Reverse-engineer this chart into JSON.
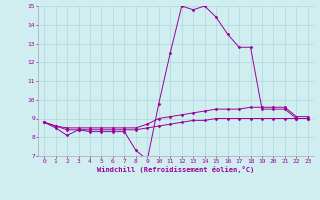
{
  "background_color": "#d0eef0",
  "grid_color": "#b0d8dc",
  "line_color": "#990099",
  "marker": "D",
  "markersize": 1.5,
  "xlabel": "Windchill (Refroidissement éolien,°C)",
  "xlim": [
    -0.5,
    23.5
  ],
  "ylim": [
    7,
    15
  ],
  "xticks": [
    0,
    1,
    2,
    3,
    4,
    5,
    6,
    7,
    8,
    9,
    10,
    11,
    12,
    13,
    14,
    15,
    16,
    17,
    18,
    19,
    20,
    21,
    22,
    23
  ],
  "yticks": [
    7,
    8,
    9,
    10,
    11,
    12,
    13,
    14,
    15
  ],
  "series": [
    [
      8.8,
      8.5,
      8.1,
      8.4,
      8.3,
      8.3,
      8.3,
      8.3,
      7.3,
      6.8,
      9.8,
      12.5,
      15.0,
      14.8,
      15.0,
      14.4,
      13.5,
      12.8,
      12.8,
      9.5,
      9.5,
      9.5,
      9.0,
      9.0
    ],
    [
      8.8,
      8.6,
      8.5,
      8.5,
      8.5,
      8.5,
      8.5,
      8.5,
      8.5,
      8.7,
      9.0,
      9.1,
      9.2,
      9.3,
      9.4,
      9.5,
      9.5,
      9.5,
      9.6,
      9.6,
      9.6,
      9.6,
      9.1,
      9.1
    ],
    [
      8.8,
      8.6,
      8.4,
      8.4,
      8.4,
      8.4,
      8.4,
      8.4,
      8.4,
      8.5,
      8.6,
      8.7,
      8.8,
      8.9,
      8.9,
      9.0,
      9.0,
      9.0,
      9.0,
      9.0,
      9.0,
      9.0,
      9.0,
      9.0
    ]
  ],
  "linewidth": 0.7,
  "tick_fontsize": 4.5,
  "xlabel_fontsize": 5.0
}
